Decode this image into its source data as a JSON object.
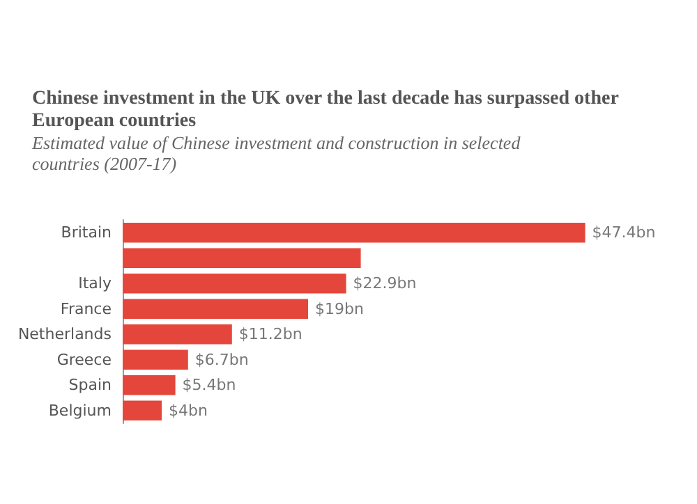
{
  "chart_data": {
    "type": "bar",
    "orientation": "horizontal",
    "title": "Chinese investment in the UK over the last decade has surpassed other European countries",
    "subtitle": "Estimated value of Chinese investment and construction in selected countries (2007-17)",
    "categories": [
      "Britain",
      null,
      "Italy",
      "France",
      "Netherlands",
      "Greece",
      "Spain",
      "Belgium"
    ],
    "values": [
      47.4,
      24.4,
      22.9,
      19,
      11.2,
      6.7,
      5.4,
      4
    ],
    "value_labels": [
      "$47.4bn",
      null,
      "$22.9bn",
      "$19bn",
      "$11.2bn",
      "$6.7bn",
      "$5.4bn",
      "$4bn"
    ],
    "color": "#e5463c"
  }
}
